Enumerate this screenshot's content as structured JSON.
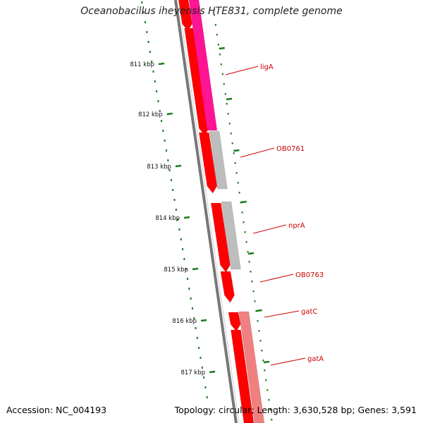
{
  "title": "Oceanobacillus iheyensis HTE831, complete genome",
  "footer": {
    "accession": "Accession: NC_004193",
    "summary": "Topology: circular; Length: 3,630,528 bp; Genes: 3,591"
  },
  "ticks": [
    {
      "label": "811 kbp"
    },
    {
      "label": "812 kbp"
    },
    {
      "label": "813 kbp"
    },
    {
      "label": "814 kbp"
    },
    {
      "label": "815 kbp"
    },
    {
      "label": "816 kbp"
    },
    {
      "label": "817 kbp"
    }
  ],
  "genes": [
    {
      "label": "ligA",
      "color": "#ff1493"
    },
    {
      "label": "OB0761",
      "color": "#bdbdbd"
    },
    {
      "label": "nprA",
      "color": "#bdbdbd"
    },
    {
      "label": "OB0763",
      "color": "#ff0000"
    },
    {
      "label": "gatC",
      "color": "#f08080"
    },
    {
      "label": "gatA",
      "color": "#f08080"
    }
  ],
  "colors": {
    "backbone": "#777777",
    "cds": "#ff0000",
    "tick": "#1a7a1a",
    "label_line": "#cc0000"
  }
}
